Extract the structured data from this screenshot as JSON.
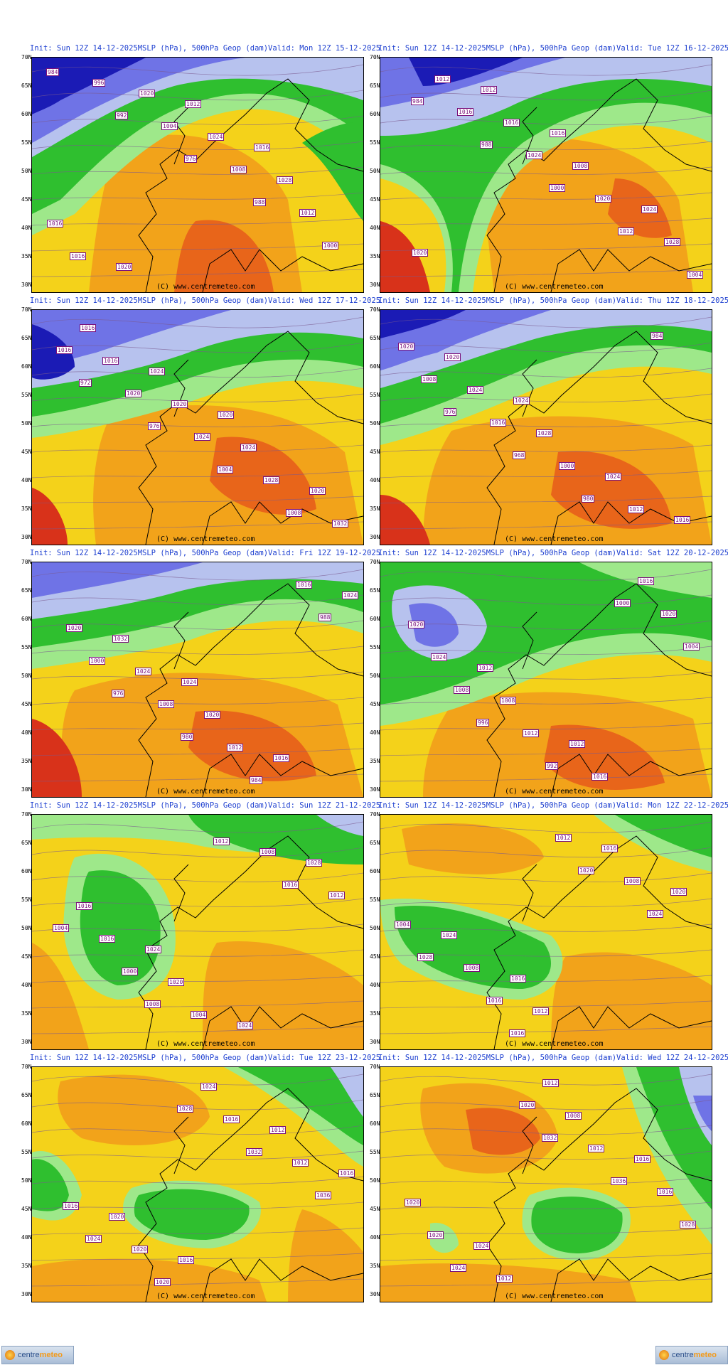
{
  "panels": [
    {
      "init": "Init: Sun 12Z 14-12-2025",
      "product": "MSLP (hPa), 500hPa Geop (dam)",
      "valid": "Valid: Mon 12Z 15-12-2025",
      "credit": "(C) www.centremeteo.com"
    },
    {
      "init": "Init: Sun 12Z 14-12-2025",
      "product": "MSLP (hPa), 500hPa Geop (dam)",
      "valid": "Valid: Tue 12Z 16-12-2025",
      "credit": "(C) www.centremeteo.com"
    },
    {
      "init": "Init: Sun 12Z 14-12-2025",
      "product": "MSLP (hPa), 500hPa Geop (dam)",
      "valid": "Valid: Wed 12Z 17-12-2025",
      "credit": "(C) www.centremeteo.com"
    },
    {
      "init": "Init: Sun 12Z 14-12-2025",
      "product": "MSLP (hPa), 500hPa Geop (dam)",
      "valid": "Valid: Thu 12Z 18-12-2025",
      "credit": "(C) www.centremeteo.com"
    },
    {
      "init": "Init: Sun 12Z 14-12-2025",
      "product": "MSLP (hPa), 500hPa Geop (dam)",
      "valid": "Valid: Fri 12Z 19-12-2025",
      "credit": "(C) www.centremeteo.com"
    },
    {
      "init": "Init: Sun 12Z 14-12-2025",
      "product": "MSLP (hPa), 500hPa Geop (dam)",
      "valid": "Valid: Sat 12Z 20-12-2025",
      "credit": "(C) www.centremeteo.com"
    },
    {
      "init": "Init: Sun 12Z 14-12-2025",
      "product": "MSLP (hPa), 500hPa Geop (dam)",
      "valid": "Valid: Sun 12Z 21-12-2025",
      "credit": "(C) www.centremeteo.com"
    },
    {
      "init": "Init: Sun 12Z 14-12-2025",
      "product": "MSLP (hPa), 500hPa Geop (dam)",
      "valid": "Valid: Mon 12Z 22-12-2025",
      "credit": "(C) www.centremeteo.com"
    },
    {
      "init": "Init: Sun 12Z 14-12-2025",
      "product": "MSLP (hPa), 500hPa Geop (dam)",
      "valid": "Valid: Tue 12Z 23-12-2025",
      "credit": "(C) www.centremeteo.com"
    },
    {
      "init": "Init: Sun 12Z 14-12-2025",
      "product": "MSLP (hPa), 500hPa Geop (dam)",
      "valid": "Valid: Wed 12Z 24-12-2025",
      "credit": "(C) www.centremeteo.com"
    }
  ],
  "latitude_labels": [
    "70N",
    "65N",
    "60N",
    "55N",
    "50N",
    "45N",
    "40N",
    "35N",
    "30N"
  ],
  "isobar_labels": [
    [
      "984",
      "992",
      "976",
      "988",
      "1000",
      "996",
      "1004",
      "1008",
      "1012",
      "1016",
      "1020",
      "1024",
      "1028",
      "1016",
      "1020",
      "1012",
      "1016"
    ],
    [
      "984",
      "988",
      "1000",
      "1012",
      "1004",
      "1016",
      "1024",
      "1020",
      "1028",
      "1012",
      "1016",
      "1008",
      "1024",
      "1020",
      "1012",
      "1016"
    ],
    [
      "972",
      "976",
      "1004",
      "1008",
      "1016",
      "1020",
      "1024",
      "1028",
      "1032",
      "1016",
      "1020",
      "1024",
      "1020",
      "1016",
      "1024",
      "1020"
    ],
    [
      "976",
      "968",
      "980",
      "984",
      "1008",
      "1016",
      "1000",
      "1012",
      "1020",
      "1024",
      "1028",
      "1024",
      "1016",
      "1020",
      "1024"
    ],
    [
      "976",
      "980",
      "984",
      "988",
      "1000",
      "1008",
      "1012",
      "1016",
      "1020",
      "1024",
      "1020",
      "1016",
      "1024",
      "1032",
      "1024"
    ],
    [
      "996",
      "992",
      "1000",
      "1004",
      "1008",
      "1012",
      "1016",
      "1020",
      "1024",
      "1008",
      "1012",
      "1016",
      "1020",
      "1012"
    ],
    [
      "1008",
      "1012",
      "1016",
      "1004",
      "1000",
      "1004",
      "1008",
      "1012",
      "1016",
      "1020",
      "1024",
      "1028",
      "1016",
      "1024"
    ],
    [
      "1016",
      "1020",
      "1024",
      "1028",
      "1016",
      "1012",
      "1008",
      "1004",
      "1008",
      "1012",
      "1016",
      "1020",
      "1024",
      "1016"
    ],
    [
      "1028",
      "1032",
      "1036",
      "1024",
      "1020",
      "1016",
      "1012",
      "1016",
      "1020",
      "1024",
      "1012",
      "1016",
      "1020",
      "1016"
    ],
    [
      "1032",
      "1036",
      "1028",
      "1024",
      "1020",
      "1012",
      "1016",
      "1020",
      "1012",
      "1008",
      "1016",
      "1020",
      "1024",
      "1012"
    ]
  ],
  "legend_colors": {
    "deep_low": "#1b1bb5",
    "low": "#6f73e6",
    "mid_low": "#b7c2ee",
    "green": "#2fbf2f",
    "light_green": "#9ee88a",
    "yellow": "#f4d21a",
    "orange": "#f2a31a",
    "dark_orange": "#e8651a",
    "red": "#d8321a"
  },
  "footer": {
    "brand_left": "centre",
    "brand_right": "meteo"
  }
}
